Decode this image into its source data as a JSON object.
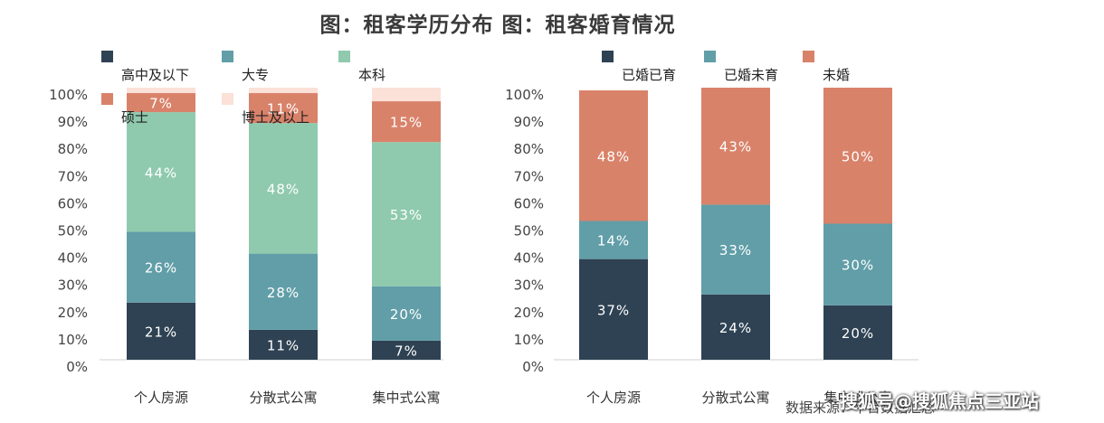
{
  "title": "图：租客学历分布 图：租客婚育情况",
  "source": "数据来源：平台数据汇总",
  "watermark": "搜狐号@搜狐焦点三亚站",
  "chart_data": [
    {
      "type": "bar",
      "stacked": true,
      "categories": [
        "个人房源",
        "分散式公寓",
        "集中式公寓"
      ],
      "ylim": [
        0,
        100
      ],
      "y_ticks": [
        "0%",
        "10%",
        "20%",
        "30%",
        "40%",
        "50%",
        "60%",
        "70%",
        "80%",
        "90%",
        "100%"
      ],
      "legend_position": "top",
      "series": [
        {
          "name": "高中及以下",
          "color": "#2e4253",
          "values": [
            21,
            11,
            7
          ],
          "labels": [
            "21%",
            "11%",
            "7%"
          ]
        },
        {
          "name": "大专",
          "color": "#619ea8",
          "values": [
            26,
            28,
            20
          ],
          "labels": [
            "26%",
            "28%",
            "20%"
          ]
        },
        {
          "name": "本科",
          "color": "#8fcaae",
          "values": [
            44,
            48,
            53
          ],
          "labels": [
            "44%",
            "48%",
            "53%"
          ]
        },
        {
          "name": "硕士",
          "color": "#d9826a",
          "values": [
            7,
            11,
            15
          ],
          "labels": [
            "7%",
            "11%",
            "15%"
          ]
        },
        {
          "name": "博士及以上",
          "color": "#fbe1d8",
          "values": [
            2,
            2,
            5
          ],
          "labels": [
            "",
            "",
            ""
          ]
        }
      ]
    },
    {
      "type": "bar",
      "stacked": true,
      "categories": [
        "个人房源",
        "分散式公寓",
        "集中式公寓"
      ],
      "ylim": [
        0,
        100
      ],
      "y_ticks": [
        "0%",
        "10%",
        "20%",
        "30%",
        "40%",
        "50%",
        "60%",
        "70%",
        "80%",
        "90%",
        "100%"
      ],
      "legend_position": "top",
      "series": [
        {
          "name": "已婚已育",
          "color": "#2e4253",
          "values": [
            37,
            24,
            20
          ],
          "labels": [
            "37%",
            "24%",
            "20%"
          ]
        },
        {
          "name": "已婚未育",
          "color": "#619ea8",
          "values": [
            14,
            33,
            30
          ],
          "labels": [
            "14%",
            "33%",
            "30%"
          ]
        },
        {
          "name": "未婚",
          "color": "#d9826a",
          "values": [
            48,
            43,
            50
          ],
          "labels": [
            "48%",
            "43%",
            "50%"
          ]
        }
      ]
    }
  ]
}
